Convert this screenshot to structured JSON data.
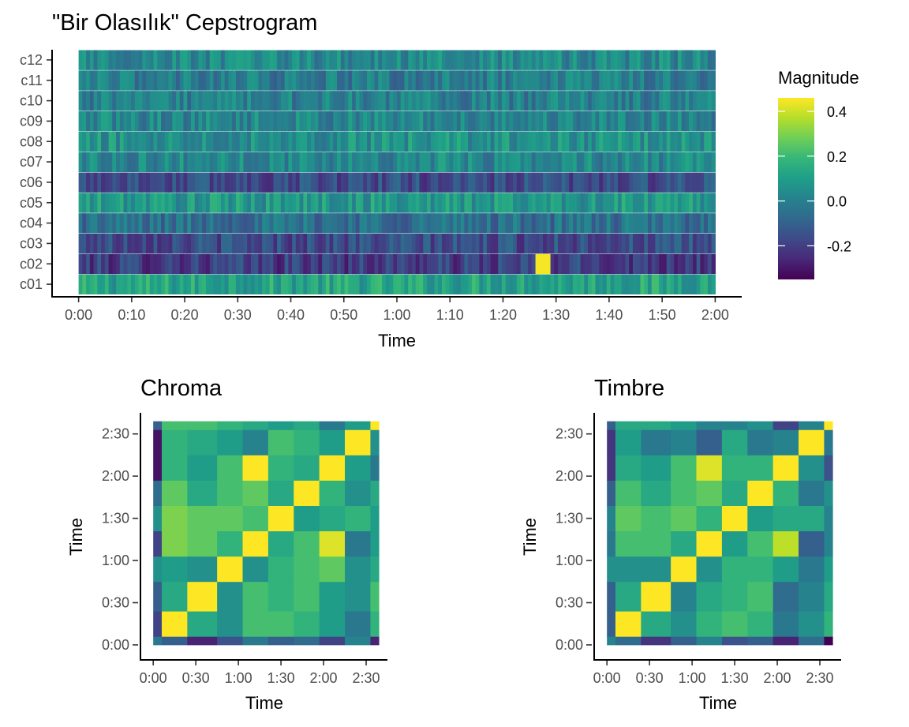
{
  "colors": {
    "viridis": [
      "#440154",
      "#482878",
      "#3e4a89",
      "#31688e",
      "#26828e",
      "#1f9e89",
      "#35b779",
      "#6ece58",
      "#b5de2b",
      "#fde725"
    ],
    "axis": "#000000",
    "tick_text": "#4d4d4d"
  },
  "chart_data": [
    {
      "type": "heatmap",
      "id": "cepstrogram",
      "title": "\"Bir Olasılık\" Cepstrogram",
      "xlabel": "Time",
      "ylabel": "",
      "x_ticks": [
        "0:00",
        "0:10",
        "0:20",
        "0:30",
        "0:40",
        "0:50",
        "1:00",
        "1:10",
        "1:20",
        "1:30",
        "1:40",
        "1:50",
        "2:00"
      ],
      "x_tick_seconds": [
        0,
        10,
        20,
        30,
        40,
        50,
        60,
        70,
        80,
        90,
        100,
        110,
        120
      ],
      "xlim_seconds": [
        0,
        120
      ],
      "xlim_view_seconds": [
        -5,
        125
      ],
      "rows": [
        "c01",
        "c02",
        "c03",
        "c04",
        "c05",
        "c06",
        "c07",
        "c08",
        "c09",
        "c10",
        "c11",
        "c12"
      ],
      "row_means": [
        0.12,
        -0.2,
        -0.16,
        -0.05,
        0.08,
        -0.16,
        0.03,
        0.06,
        0.02,
        0.0,
        -0.01,
        0.03
      ],
      "highlight": {
        "row": "c02",
        "time_seconds": 87,
        "value": 0.45
      },
      "legend": {
        "title": "Magnitude",
        "ticks": [
          "0.4",
          "0.2",
          "0.0",
          "-0.2"
        ],
        "tick_values": [
          0.4,
          0.2,
          0.0,
          -0.2
        ],
        "range": [
          -0.35,
          0.46
        ]
      }
    },
    {
      "type": "heatmap",
      "id": "chroma-ssm",
      "title": "Chroma",
      "xlabel": "Time",
      "ylabel": "Time",
      "ticks": [
        "0:00",
        "0:30",
        "1:00",
        "1:30",
        "2:00",
        "2:30"
      ],
      "tick_seconds": [
        0,
        30,
        60,
        90,
        120,
        150
      ],
      "edges_seconds": [
        0,
        2,
        8,
        15,
        21,
        27,
        33,
        39,
        45,
        51,
        53
      ],
      "xlim_view_seconds": [
        -3,
        55
      ],
      "scale": "sqrt",
      "values": [
        [
          0.6,
          0.7,
          0.9,
          0.75,
          0.6,
          0.7,
          0.65,
          0.8,
          0.55,
          0.9
        ],
        [
          0.8,
          0.0,
          0.4,
          0.5,
          0.3,
          0.3,
          0.35,
          0.45,
          0.6,
          0.35
        ],
        [
          0.7,
          0.4,
          0.0,
          0.5,
          0.3,
          0.35,
          0.3,
          0.45,
          0.5,
          0.3
        ],
        [
          0.5,
          0.45,
          0.5,
          0.0,
          0.5,
          0.35,
          0.3,
          0.25,
          0.5,
          0.4
        ],
        [
          0.8,
          0.2,
          0.25,
          0.35,
          0.0,
          0.4,
          0.3,
          0.05,
          0.6,
          0.45
        ],
        [
          0.5,
          0.2,
          0.25,
          0.25,
          0.3,
          0.0,
          0.45,
          0.4,
          0.35,
          0.45
        ],
        [
          0.65,
          0.25,
          0.4,
          0.3,
          0.25,
          0.4,
          0.0,
          0.35,
          0.5,
          0.4
        ],
        [
          0.95,
          0.35,
          0.45,
          0.3,
          0.0,
          0.35,
          0.4,
          0.0,
          0.45,
          0.6
        ],
        [
          0.95,
          0.35,
          0.4,
          0.45,
          0.55,
          0.3,
          0.35,
          0.45,
          0.0,
          0.5
        ],
        [
          0.7,
          0.3,
          0.3,
          0.35,
          0.4,
          0.45,
          0.4,
          0.6,
          0.45,
          0.0
        ]
      ]
    },
    {
      "type": "heatmap",
      "id": "timbre-ssm",
      "title": "Timbre",
      "xlabel": "Time",
      "ylabel": "Time",
      "ticks": [
        "0:00",
        "0:30",
        "1:00",
        "1:30",
        "2:00",
        "2:30"
      ],
      "tick_seconds": [
        0,
        30,
        60,
        90,
        120,
        150
      ],
      "edges_seconds": [
        0,
        2,
        8,
        15,
        21,
        27,
        33,
        39,
        45,
        51,
        53
      ],
      "xlim_view_seconds": [
        -3,
        55
      ],
      "scale": "sqrt",
      "values": [
        [
          0.55,
          0.65,
          0.85,
          0.7,
          0.55,
          0.75,
          0.7,
          0.9,
          0.65,
          1.0
        ],
        [
          0.7,
          0.0,
          0.4,
          0.5,
          0.35,
          0.3,
          0.35,
          0.6,
          0.5,
          0.35
        ],
        [
          0.7,
          0.4,
          0.0,
          0.55,
          0.4,
          0.35,
          0.3,
          0.65,
          0.55,
          0.4
        ],
        [
          0.5,
          0.5,
          0.5,
          0.0,
          0.5,
          0.35,
          0.35,
          0.45,
          0.6,
          0.45
        ],
        [
          0.6,
          0.3,
          0.3,
          0.4,
          0.0,
          0.45,
          0.3,
          0.1,
          0.7,
          0.55
        ],
        [
          0.55,
          0.25,
          0.3,
          0.25,
          0.35,
          0.0,
          0.45,
          0.4,
          0.4,
          0.55
        ],
        [
          0.7,
          0.3,
          0.4,
          0.3,
          0.25,
          0.4,
          0.0,
          0.35,
          0.6,
          0.5
        ],
        [
          0.85,
          0.4,
          0.45,
          0.3,
          0.05,
          0.35,
          0.35,
          0.0,
          0.5,
          0.75
        ],
        [
          0.85,
          0.45,
          0.6,
          0.55,
          0.7,
          0.4,
          0.6,
          0.55,
          0.0,
          0.6
        ],
        [
          0.7,
          0.4,
          0.4,
          0.45,
          0.55,
          0.55,
          0.5,
          0.8,
          0.55,
          0.0
        ]
      ]
    }
  ]
}
